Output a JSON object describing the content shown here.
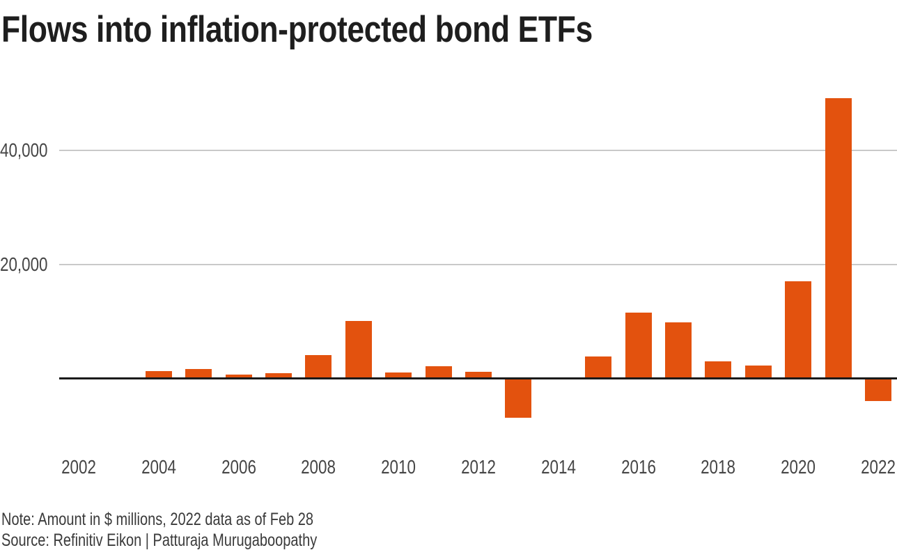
{
  "chart_data": {
    "type": "bar",
    "title": "Flows into inflation-protected bond ETFs",
    "xlabel": "",
    "ylabel": "",
    "units": "$ millions",
    "categories": [
      2002,
      2003,
      2004,
      2005,
      2006,
      2007,
      2008,
      2009,
      2010,
      2011,
      2012,
      2013,
      2014,
      2015,
      2016,
      2017,
      2018,
      2019,
      2020,
      2021,
      2022
    ],
    "values": [
      0,
      0,
      1300,
      1700,
      700,
      1000,
      4200,
      10100,
      1100,
      2200,
      1200,
      -6800,
      250,
      3900,
      11600,
      9900,
      3000,
      2350,
      17100,
      49200,
      -3900
    ],
    "x_tick_labels": [
      "2002",
      "2004",
      "2006",
      "2008",
      "2010",
      "2012",
      "2014",
      "2016",
      "2018",
      "2020",
      "2022"
    ],
    "y_ticks": [
      {
        "value": 20000,
        "label": "20,000"
      },
      {
        "value": 40000,
        "label": "40,000"
      }
    ],
    "ylim": [
      -8000,
      50500
    ],
    "grid": "horizontal",
    "legend": "none",
    "bar_color": "#e3520e",
    "gridline_color": "#c9c9c9",
    "axis_line_color": "#1a1a1a"
  },
  "footer": {
    "note": "Note: Amount in $ millions, 2022 data as of Feb 28",
    "source": "Source: Refinitiv Eikon | Patturaja Murugaboopathy"
  }
}
